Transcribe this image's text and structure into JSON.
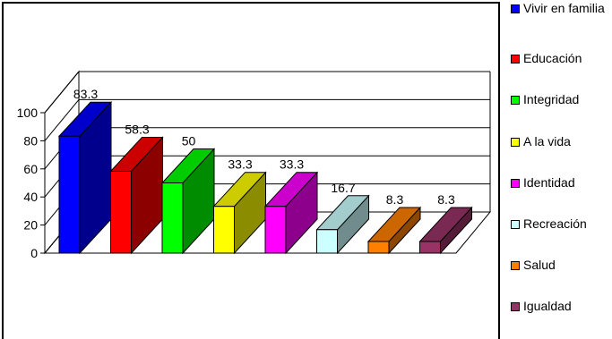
{
  "chart_data": {
    "type": "bar",
    "title": "",
    "xlabel": "",
    "ylabel": "",
    "ylim": [
      0,
      100
    ],
    "y_ticks": [
      "0",
      "20",
      "40",
      "60",
      "80",
      "100"
    ],
    "grid": true,
    "three_d": true,
    "legend_position": "right",
    "categories": [
      "Vivir en familia",
      "Educación",
      "Integridad",
      "A la vida",
      "Identidad",
      "Recreación",
      "Salud",
      "Igualdad"
    ],
    "values": [
      83.3,
      58.3,
      50,
      33.3,
      33.3,
      16.7,
      8.3,
      8.3
    ],
    "data_labels": [
      "83.3",
      "58.3",
      "50",
      "33.3",
      "33.3",
      "16.7",
      "8.3",
      "8.3"
    ],
    "colors": [
      "#0000ff",
      "#ff0000",
      "#00ff00",
      "#ffff00",
      "#ff00ff",
      "#ccffff",
      "#ff8000",
      "#993366"
    ]
  }
}
